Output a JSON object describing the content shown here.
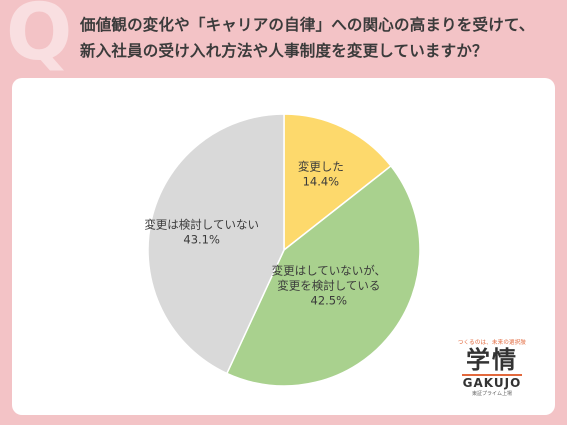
{
  "header": {
    "q_mark": "Q",
    "question_line1": "価値観の変化や「キャリアの自律」への関心の高まりを受けて、",
    "question_line2": "新入社員の受け入れ方法や人事制度を変更していますか？"
  },
  "chart_data": {
    "type": "pie",
    "title": "",
    "slices": [
      {
        "label_lines": [
          "変更した"
        ],
        "value": 14.4,
        "value_text": "14.4%",
        "color": "#fdd96c"
      },
      {
        "label_lines": [
          "変更はしていないが、",
          "変更を検討している"
        ],
        "value": 42.5,
        "value_text": "42.5%",
        "color": "#a9d18e"
      },
      {
        "label_lines": [
          "変更は検討していない"
        ],
        "value": 43.1,
        "value_text": "43.1%",
        "color": "#d9d9d9"
      }
    ],
    "start_angle_deg": 0,
    "direction": "clockwise",
    "legend": "none"
  },
  "logo": {
    "tagline": "つくるのは、未来の選択肢",
    "kanji": "学情",
    "brand": "GAKUJO",
    "sub": "東証プライム上場"
  },
  "colors": {
    "background": "#f3c3c6",
    "card": "#ffffff",
    "accent": "#e2683c"
  }
}
